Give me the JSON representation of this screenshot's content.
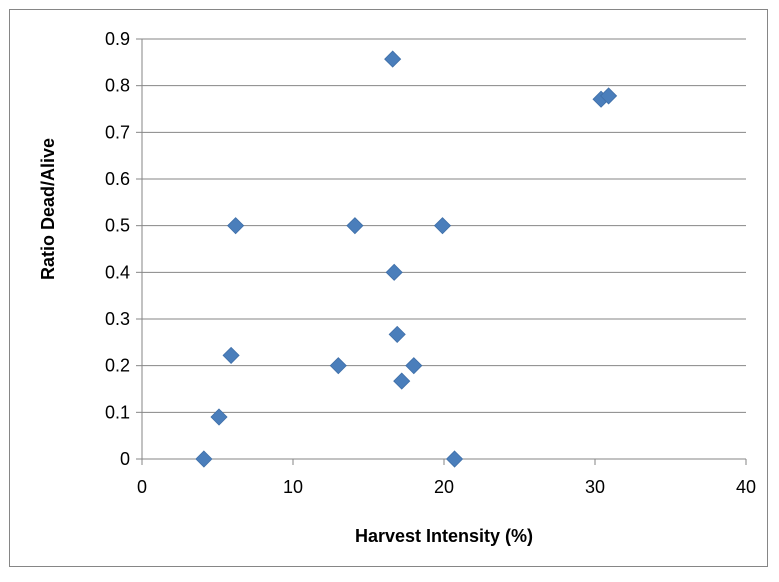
{
  "chart_data": {
    "type": "scatter",
    "title": "",
    "xlabel": "Harvest Intensity (%)",
    "ylabel": "Ratio Dead/Alive",
    "xlim": [
      0,
      40
    ],
    "ylim": [
      0,
      0.9
    ],
    "x_ticks": [
      "0",
      "10",
      "20",
      "30",
      "40"
    ],
    "y_ticks": [
      "0",
      "0.1",
      "0.2",
      "0.3",
      "0.4",
      "0.5",
      "0.6",
      "0.7",
      "0.8",
      "0.9"
    ],
    "grid": "horizontal",
    "legend": "none",
    "marker": "diamond",
    "colors": {
      "marker": "#4a7ebb",
      "grid": "#868686",
      "axis": "#868686",
      "border": "#868686"
    },
    "series": [
      {
        "points": [
          {
            "x": 4.1,
            "y": 0.0
          },
          {
            "x": 5.1,
            "y": 0.09
          },
          {
            "x": 5.9,
            "y": 0.222
          },
          {
            "x": 6.2,
            "y": 0.5
          },
          {
            "x": 13.0,
            "y": 0.2
          },
          {
            "x": 14.1,
            "y": 0.5
          },
          {
            "x": 16.6,
            "y": 0.857
          },
          {
            "x": 16.7,
            "y": 0.4
          },
          {
            "x": 16.9,
            "y": 0.267
          },
          {
            "x": 17.2,
            "y": 0.167
          },
          {
            "x": 18.0,
            "y": 0.2
          },
          {
            "x": 19.9,
            "y": 0.5
          },
          {
            "x": 20.7,
            "y": 0.0
          },
          {
            "x": 30.4,
            "y": 0.771
          },
          {
            "x": 30.9,
            "y": 0.778
          }
        ]
      }
    ]
  }
}
